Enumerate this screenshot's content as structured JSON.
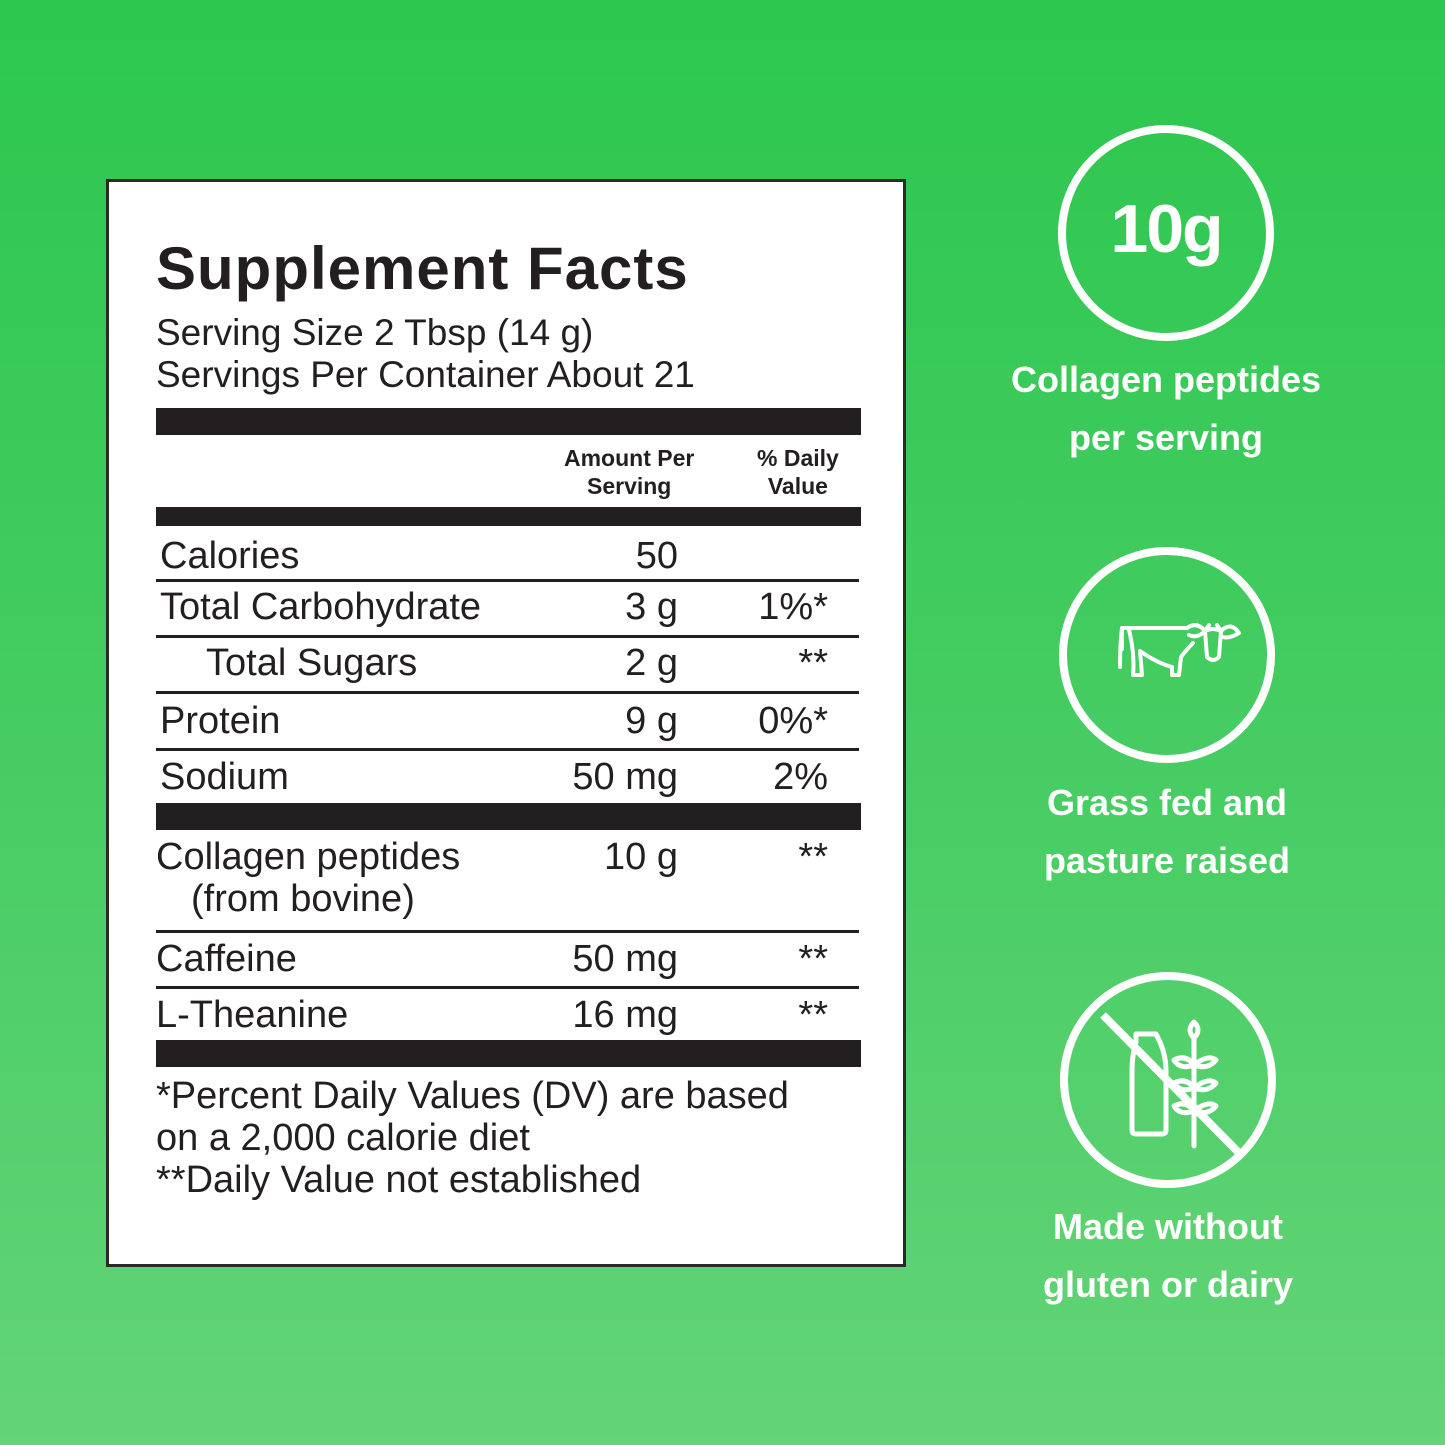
{
  "label": {
    "title": "Supplement Facts",
    "serving_size": "Serving Size 2 Tbsp (14 g)",
    "servings_per_container": "Servings Per Container About 21",
    "col_amount": [
      "Amount Per",
      "Serving"
    ],
    "col_dv": [
      "% Daily",
      "Value"
    ],
    "rows": [
      {
        "name": "Calories",
        "amount": "50",
        "dv": ""
      },
      {
        "name": "Total Carbohydrate",
        "amount": "3 g",
        "dv": "1%*"
      },
      {
        "name": "Total Sugars",
        "amount": "2 g",
        "dv": "**"
      },
      {
        "name": "Protein",
        "amount": "9 g",
        "dv": "0%*"
      },
      {
        "name": "Sodium",
        "amount": "50 mg",
        "dv": "2%"
      },
      {
        "name": "Collagen peptides",
        "name2": "(from bovine)",
        "amount": "10 g",
        "dv": "**"
      },
      {
        "name": "Caffeine",
        "amount": "50 mg",
        "dv": "**"
      },
      {
        "name": "L-Theanine",
        "amount": "16 mg",
        "dv": "**"
      }
    ],
    "footnotes": [
      "*Percent Daily Values (DV) are based",
      "on a 2,000 calorie diet",
      "**Daily Value not established"
    ]
  },
  "badges": [
    {
      "icon": "10g-text",
      "circle_text": "10g",
      "lines": [
        "Collagen peptides",
        "per serving"
      ]
    },
    {
      "icon": "cow-icon",
      "lines": [
        "Grass fed and",
        "pasture raised"
      ]
    },
    {
      "icon": "no-milk-wheat-icon",
      "lines": [
        "Made without",
        "gluten or dairy"
      ]
    }
  ],
  "colors": {
    "bg_top": "#2cc74e",
    "bg_bottom": "#63d477",
    "ink": "#231f20"
  }
}
